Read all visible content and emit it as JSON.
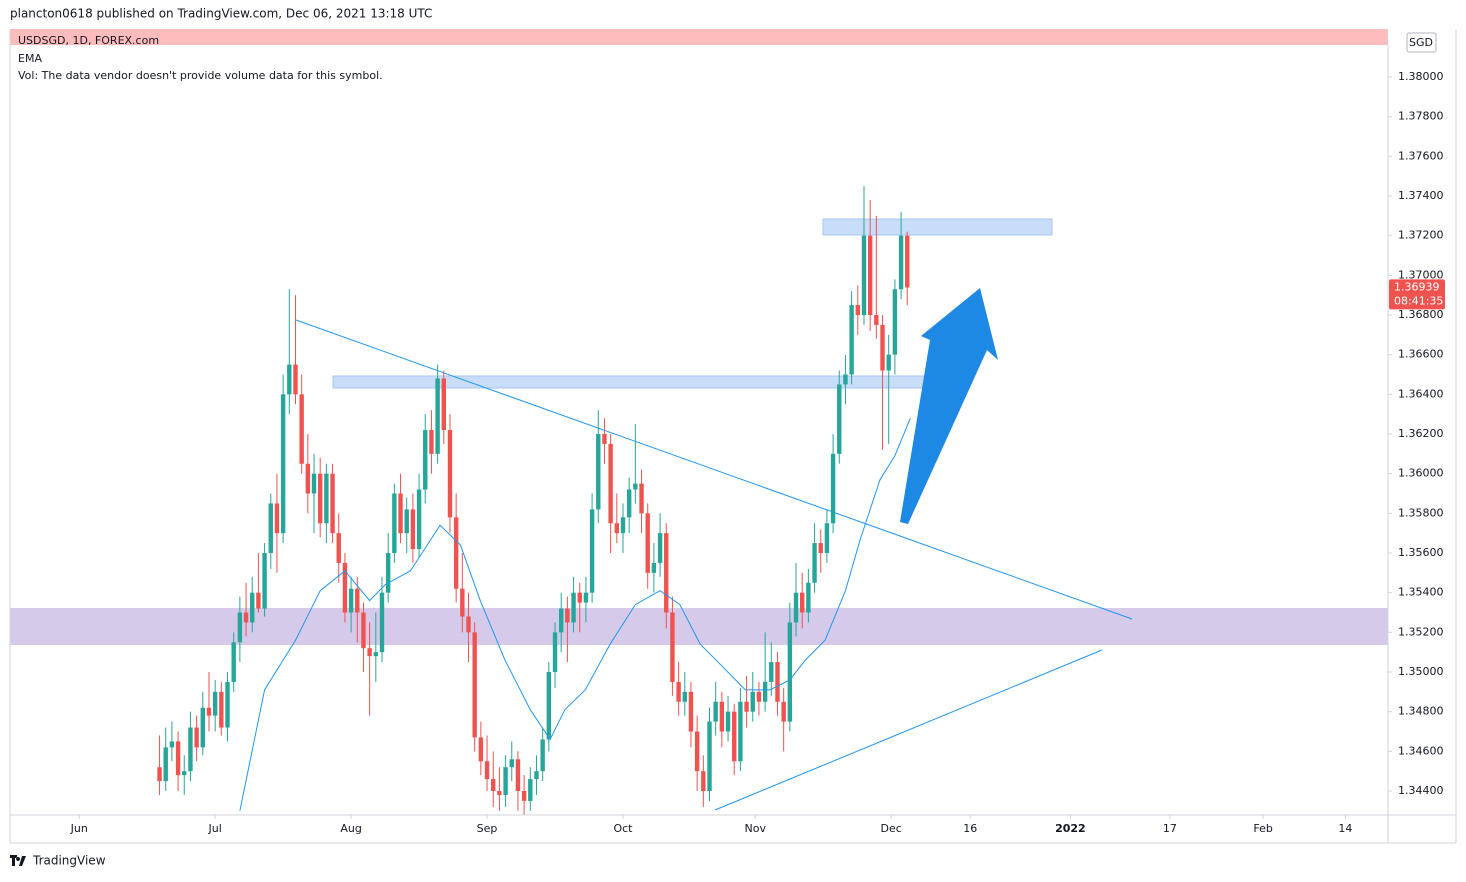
{
  "header": {
    "published": "plancton0618 published on TradingView.com, Dec 06, 2021 13:18 UTC"
  },
  "chart_data": {
    "type": "candlestick",
    "symbol": "USDSGD, 1D, FOREX.com",
    "indicator": "EMA",
    "volume_note": "Vol: The data vendor doesn't provide volume data for this symbol.",
    "currency": "SGD",
    "countdown": "08:41:35",
    "up_color": "#26a69a",
    "down_color": "#ef5350",
    "ema_color": "#2196f3",
    "xlim": [
      -11.2,
      211.8
    ],
    "xticks": [
      {
        "value": 0,
        "label": "Jun"
      },
      {
        "value": 22,
        "label": "Jul"
      },
      {
        "value": 44,
        "label": "Aug"
      },
      {
        "value": 66,
        "label": "Sep"
      },
      {
        "value": 88,
        "label": "Oct"
      },
      {
        "value": 109.4,
        "label": "Nov"
      },
      {
        "value": 131.4,
        "label": "Dec"
      },
      {
        "value": 144.2,
        "label": "16"
      },
      {
        "value": 160.4,
        "label": "2022"
      },
      {
        "value": 176.5,
        "label": "17"
      },
      {
        "value": 191.6,
        "label": "Feb"
      },
      {
        "value": 204.9,
        "label": "14"
      }
    ],
    "ylim": [
      1.34279,
      1.38237
    ],
    "yticks": [
      {
        "value": 1.344,
        "label": "1.34400"
      },
      {
        "value": 1.346,
        "label": "1.34600"
      },
      {
        "value": 1.348,
        "label": "1.34800"
      },
      {
        "value": 1.35,
        "label": "1.35000"
      },
      {
        "value": 1.352,
        "label": "1.35200"
      },
      {
        "value": 1.354,
        "label": "1.35400"
      },
      {
        "value": 1.356,
        "label": "1.35600"
      },
      {
        "value": 1.358,
        "label": "1.35800"
      },
      {
        "value": 1.36,
        "label": "1.36000"
      },
      {
        "value": 1.362,
        "label": "1.36200"
      },
      {
        "value": 1.364,
        "label": "1.36400"
      },
      {
        "value": 1.366,
        "label": "1.36600"
      },
      {
        "value": 1.368,
        "label": "1.36800"
      },
      {
        "value": 1.37,
        "label": "1.37000"
      },
      {
        "value": 1.372,
        "label": "1.37200"
      },
      {
        "value": 1.374,
        "label": "1.37400"
      },
      {
        "value": 1.376,
        "label": "1.37600"
      },
      {
        "value": 1.378,
        "label": "1.37800"
      },
      {
        "value": 1.38,
        "label": "1.38000"
      }
    ],
    "ohlc": [
      [
        13,
        1.3452,
        1.3468,
        1.3438,
        1.3445
      ],
      [
        14,
        1.3445,
        1.3472,
        1.344,
        1.3462
      ],
      [
        15,
        1.3462,
        1.3475,
        1.3455,
        1.3465
      ],
      [
        16,
        1.3465,
        1.347,
        1.344,
        1.3448
      ],
      [
        17,
        1.3448,
        1.3458,
        1.3438,
        1.345
      ],
      [
        18,
        1.345,
        1.348,
        1.3445,
        1.3472
      ],
      [
        19,
        1.3472,
        1.3478,
        1.3455,
        1.3462
      ],
      [
        20,
        1.3462,
        1.349,
        1.3458,
        1.3482
      ],
      [
        21,
        1.3482,
        1.35,
        1.347,
        1.3478
      ],
      [
        22,
        1.3478,
        1.3496,
        1.347,
        1.349
      ],
      [
        23,
        1.349,
        1.3495,
        1.3468,
        1.3472
      ],
      [
        24,
        1.3472,
        1.35,
        1.3465,
        1.3495
      ],
      [
        25,
        1.3495,
        1.352,
        1.349,
        1.3515
      ],
      [
        26,
        1.3515,
        1.3538,
        1.3505,
        1.353
      ],
      [
        27,
        1.353,
        1.3545,
        1.3518,
        1.3525
      ],
      [
        28,
        1.3525,
        1.3548,
        1.352,
        1.354
      ],
      [
        29,
        1.354,
        1.356,
        1.353,
        1.3532
      ],
      [
        30,
        1.3532,
        1.3565,
        1.3528,
        1.356
      ],
      [
        31,
        1.356,
        1.359,
        1.3552,
        1.3585
      ],
      [
        32,
        1.3585,
        1.36,
        1.355,
        1.357
      ],
      [
        33,
        1.357,
        1.365,
        1.3565,
        1.364
      ],
      [
        34,
        1.364,
        1.3693,
        1.363,
        1.3655
      ],
      [
        35,
        1.3655,
        1.369,
        1.3635,
        1.364
      ],
      [
        36,
        1.364,
        1.365,
        1.36,
        1.3605
      ],
      [
        37,
        1.3605,
        1.362,
        1.358,
        1.359
      ],
      [
        38,
        1.359,
        1.361,
        1.357,
        1.36
      ],
      [
        39,
        1.36,
        1.3608,
        1.3568,
        1.3575
      ],
      [
        40,
        1.3575,
        1.3605,
        1.3565,
        1.36
      ],
      [
        41,
        1.36,
        1.3605,
        1.3565,
        1.357
      ],
      [
        42,
        1.357,
        1.358,
        1.3545,
        1.3555
      ],
      [
        43,
        1.3555,
        1.356,
        1.3525,
        1.353
      ],
      [
        44,
        1.353,
        1.3548,
        1.352,
        1.3542
      ],
      [
        45,
        1.3542,
        1.3548,
        1.3515,
        1.353
      ],
      [
        46,
        1.353,
        1.3535,
        1.35,
        1.3512
      ],
      [
        47,
        1.3512,
        1.3525,
        1.3478,
        1.3508
      ],
      [
        48,
        1.3508,
        1.353,
        1.3495,
        1.351
      ],
      [
        49,
        1.351,
        1.3548,
        1.3505,
        1.354
      ],
      [
        50,
        1.354,
        1.357,
        1.3535,
        1.356
      ],
      [
        51,
        1.356,
        1.3595,
        1.3555,
        1.359
      ],
      [
        52,
        1.359,
        1.36,
        1.3565,
        1.357
      ],
      [
        53,
        1.357,
        1.3588,
        1.356,
        1.3582
      ],
      [
        54,
        1.3582,
        1.359,
        1.3555,
        1.3562
      ],
      [
        55,
        1.3562,
        1.36,
        1.3558,
        1.3592
      ],
      [
        56,
        1.3592,
        1.363,
        1.3585,
        1.3622
      ],
      [
        57,
        1.3622,
        1.3632,
        1.36,
        1.361
      ],
      [
        58,
        1.361,
        1.3655,
        1.3605,
        1.3648
      ],
      [
        59,
        1.3648,
        1.3652,
        1.3615,
        1.3622
      ],
      [
        60,
        1.3622,
        1.363,
        1.357,
        1.3578
      ],
      [
        61,
        1.3578,
        1.359,
        1.3535,
        1.3542
      ],
      [
        62,
        1.3542,
        1.356,
        1.352,
        1.3528
      ],
      [
        63,
        1.3528,
        1.354,
        1.3505,
        1.352
      ],
      [
        64,
        1.352,
        1.3525,
        1.346,
        1.3467
      ],
      [
        65,
        1.3467,
        1.3475,
        1.3448,
        1.3455
      ],
      [
        66,
        1.3455,
        1.3468,
        1.344,
        1.3446
      ],
      [
        67,
        1.3446,
        1.346,
        1.3432,
        1.344
      ],
      [
        68,
        1.344,
        1.3452,
        1.343,
        1.3438
      ],
      [
        69,
        1.3438,
        1.3458,
        1.3432,
        1.3452
      ],
      [
        70,
        1.3452,
        1.3465,
        1.3445,
        1.3456
      ],
      [
        71,
        1.3456,
        1.346,
        1.343,
        1.344
      ],
      [
        72,
        1.344,
        1.3448,
        1.3428,
        1.3435
      ],
      [
        73,
        1.3435,
        1.3452,
        1.343,
        1.3446
      ],
      [
        74,
        1.3446,
        1.3458,
        1.3438,
        1.345
      ],
      [
        75,
        1.345,
        1.3472,
        1.3445,
        1.3466
      ],
      [
        76,
        1.3466,
        1.3505,
        1.346,
        1.35
      ],
      [
        77,
        1.35,
        1.3525,
        1.3492,
        1.352
      ],
      [
        78,
        1.352,
        1.354,
        1.351,
        1.3532
      ],
      [
        79,
        1.3532,
        1.3538,
        1.3505,
        1.3525
      ],
      [
        80,
        1.3525,
        1.3548,
        1.352,
        1.354
      ],
      [
        81,
        1.354,
        1.3545,
        1.352,
        1.3535
      ],
      [
        82,
        1.3535,
        1.3548,
        1.3525,
        1.354
      ],
      [
        83,
        1.354,
        1.359,
        1.3535,
        1.3582
      ],
      [
        84,
        1.3582,
        1.3632,
        1.3575,
        1.362
      ],
      [
        85,
        1.362,
        1.3628,
        1.3605,
        1.3615
      ],
      [
        86,
        1.3615,
        1.362,
        1.356,
        1.3575
      ],
      [
        87,
        1.3575,
        1.359,
        1.3565,
        1.357
      ],
      [
        88,
        1.357,
        1.3585,
        1.356,
        1.3578
      ],
      [
        89,
        1.3578,
        1.3598,
        1.357,
        1.3592
      ],
      [
        90,
        1.3592,
        1.3625,
        1.3585,
        1.3595
      ],
      [
        91,
        1.3595,
        1.3602,
        1.357,
        1.358
      ],
      [
        92,
        1.358,
        1.3585,
        1.3542,
        1.355
      ],
      [
        93,
        1.355,
        1.3565,
        1.354,
        1.3555
      ],
      [
        94,
        1.3555,
        1.358,
        1.3548,
        1.357
      ],
      [
        95,
        1.357,
        1.3575,
        1.3522,
        1.353
      ],
      [
        96,
        1.353,
        1.3538,
        1.3488,
        1.3495
      ],
      [
        97,
        1.3495,
        1.3505,
        1.3478,
        1.3485
      ],
      [
        98,
        1.3485,
        1.35,
        1.3478,
        1.349
      ],
      [
        99,
        1.349,
        1.3495,
        1.3462,
        1.347
      ],
      [
        100,
        1.347,
        1.3478,
        1.344,
        1.345
      ],
      [
        101,
        1.345,
        1.3458,
        1.3432,
        1.344
      ],
      [
        102,
        1.344,
        1.3482,
        1.3435,
        1.3475
      ],
      [
        103,
        1.3475,
        1.3495,
        1.3468,
        1.3485
      ],
      [
        104,
        1.3485,
        1.349,
        1.3462,
        1.347
      ],
      [
        105,
        1.347,
        1.3488,
        1.3465,
        1.348
      ],
      [
        106,
        1.348,
        1.3484,
        1.3448,
        1.3455
      ],
      [
        107,
        1.3455,
        1.3492,
        1.345,
        1.3485
      ],
      [
        108,
        1.3485,
        1.3498,
        1.3472,
        1.348
      ],
      [
        109,
        1.348,
        1.35,
        1.3475,
        1.349
      ],
      [
        110,
        1.349,
        1.3495,
        1.3478,
        1.3485
      ],
      [
        111,
        1.3485,
        1.352,
        1.348,
        1.3495
      ],
      [
        112,
        1.3495,
        1.3515,
        1.3488,
        1.3505
      ],
      [
        113,
        1.3505,
        1.351,
        1.3478,
        1.3485
      ],
      [
        114,
        1.3485,
        1.3492,
        1.346,
        1.3475
      ],
      [
        115,
        1.3475,
        1.3535,
        1.347,
        1.3525
      ],
      [
        116,
        1.3525,
        1.3555,
        1.3518,
        1.354
      ],
      [
        117,
        1.354,
        1.355,
        1.3522,
        1.353
      ],
      [
        118,
        1.353,
        1.3552,
        1.3525,
        1.3545
      ],
      [
        119,
        1.3545,
        1.3575,
        1.354,
        1.3565
      ],
      [
        120,
        1.3565,
        1.3572,
        1.355,
        1.356
      ],
      [
        121,
        1.356,
        1.3582,
        1.3555,
        1.3575
      ],
      [
        122,
        1.3575,
        1.362,
        1.357,
        1.361
      ],
      [
        123,
        1.361,
        1.3652,
        1.3605,
        1.3645
      ],
      [
        124,
        1.3645,
        1.366,
        1.3635,
        1.365
      ],
      [
        125,
        1.365,
        1.3692,
        1.3645,
        1.3685
      ],
      [
        126,
        1.3685,
        1.3695,
        1.367,
        1.368
      ],
      [
        127,
        1.368,
        1.3745,
        1.3675,
        1.372
      ],
      [
        128,
        1.372,
        1.3738,
        1.3672,
        1.368
      ],
      [
        129,
        1.368,
        1.373,
        1.3668,
        1.3675
      ],
      [
        130,
        1.3675,
        1.368,
        1.3612,
        1.3652
      ],
      [
        131,
        1.3652,
        1.367,
        1.3615,
        1.366
      ],
      [
        132,
        1.366,
        1.3698,
        1.365,
        1.3693
      ],
      [
        133,
        1.3693,
        1.3732,
        1.3688,
        1.372
      ],
      [
        134,
        1.372,
        1.3722,
        1.3685,
        1.36939
      ]
    ],
    "ema": {
      "x": [
        26,
        30,
        35,
        39,
        43,
        47,
        49.5,
        53.6,
        58.4,
        61.7,
        64.9,
        68.9,
        73,
        76.2,
        78.6,
        81.9,
        85.9,
        90,
        94,
        97.2,
        100.5,
        103.7,
        107.8,
        111.8,
        115,
        117.5,
        120.7,
        124,
        126.4,
        129.6,
        132,
        134.5
      ],
      "values": [
        1.343,
        1.3491,
        1.3516,
        1.3541,
        1.3551,
        1.3536,
        1.3544,
        1.3551,
        1.3574,
        1.3564,
        1.3536,
        1.3506,
        1.3481,
        1.3466,
        1.3481,
        1.3491,
        1.3514,
        1.3534,
        1.3541,
        1.3534,
        1.3514,
        1.3504,
        1.3491,
        1.3491,
        1.3496,
        1.3506,
        1.3516,
        1.3541,
        1.3567,
        1.3597,
        1.3609,
        1.3628
      ]
    }
  },
  "footer": {
    "brand": "TradingView"
  }
}
